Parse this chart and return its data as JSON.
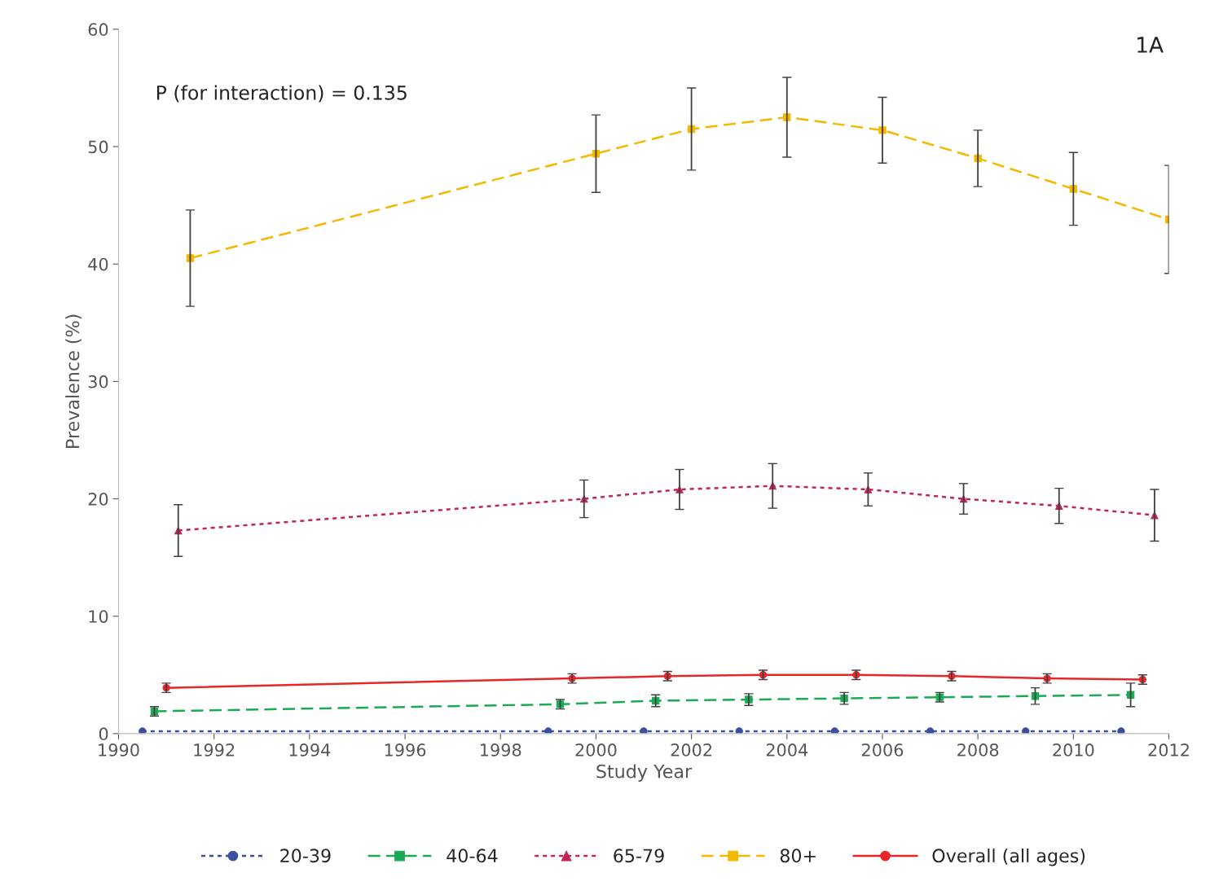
{
  "chart_data": {
    "type": "line",
    "xlabel": "Study Year",
    "ylabel": "Prevalence (%)",
    "xlim": [
      1990,
      2012
    ],
    "xticks": [
      1990,
      1992,
      1994,
      1996,
      1998,
      2000,
      2002,
      2004,
      2006,
      2008,
      2010,
      2012
    ],
    "ylim": [
      0,
      60
    ],
    "yticks": [
      0,
      10,
      20,
      30,
      40,
      50,
      60
    ],
    "grid": false,
    "legend": "bottom",
    "annotations": [
      "P (for interaction) = 0.135",
      "1A"
    ],
    "series": [
      {
        "name": "20-39",
        "color": "#3a4fa0",
        "marker": "circle",
        "line_style": "dotted",
        "x": [
          1990.5,
          1999.0,
          2001.0,
          2003.0,
          2005.0,
          2007.0,
          2009.0,
          2011.0
        ],
        "values": [
          0.2,
          0.2,
          0.2,
          0.2,
          0.2,
          0.2,
          0.2,
          0.2
        ]
      },
      {
        "name": "40-64",
        "color": "#1aaa55",
        "marker": "square",
        "line_style": "dashed",
        "x": [
          1990.75,
          1999.25,
          2001.25,
          2003.2,
          2005.2,
          2007.2,
          2009.2,
          2011.2
        ],
        "values": [
          1.9,
          2.5,
          2.8,
          2.9,
          3.0,
          3.1,
          3.2,
          3.3
        ],
        "errors": [
          0.4,
          0.4,
          0.5,
          0.5,
          0.5,
          0.4,
          0.7,
          1.0
        ]
      },
      {
        "name": "65-79",
        "color": "#c0245c",
        "marker": "triangle",
        "line_style": "dotted",
        "x": [
          1991.25,
          1999.75,
          2001.75,
          2003.7,
          2005.7,
          2007.7,
          2009.7,
          2011.7
        ],
        "values": [
          17.3,
          20.0,
          20.8,
          21.1,
          20.8,
          20.0,
          19.4,
          18.6
        ],
        "errors": [
          2.2,
          1.6,
          1.7,
          1.9,
          1.4,
          1.3,
          1.5,
          2.2
        ]
      },
      {
        "name": "80+",
        "color": "#f5b800",
        "marker": "square",
        "line_style": "dashed",
        "x": [
          1991.5,
          2000,
          2002,
          2004,
          2006,
          2008,
          2010,
          2012
        ],
        "values": [
          40.5,
          49.4,
          51.5,
          52.5,
          51.4,
          49.0,
          46.4,
          43.8
        ],
        "errors": [
          4.1,
          3.3,
          3.5,
          3.4,
          2.8,
          2.4,
          3.1,
          4.6
        ]
      },
      {
        "name": "Overall (all ages)",
        "color": "#e8262a",
        "marker": "circle",
        "line_style": "solid",
        "x": [
          1991.0,
          1999.5,
          2001.5,
          2003.5,
          2005.45,
          2007.45,
          2009.45,
          2011.45
        ],
        "values": [
          3.9,
          4.7,
          4.9,
          5.0,
          5.0,
          4.9,
          4.7,
          4.6
        ],
        "errors": [
          0.4,
          0.4,
          0.4,
          0.4,
          0.4,
          0.4,
          0.4,
          0.4
        ]
      }
    ]
  }
}
